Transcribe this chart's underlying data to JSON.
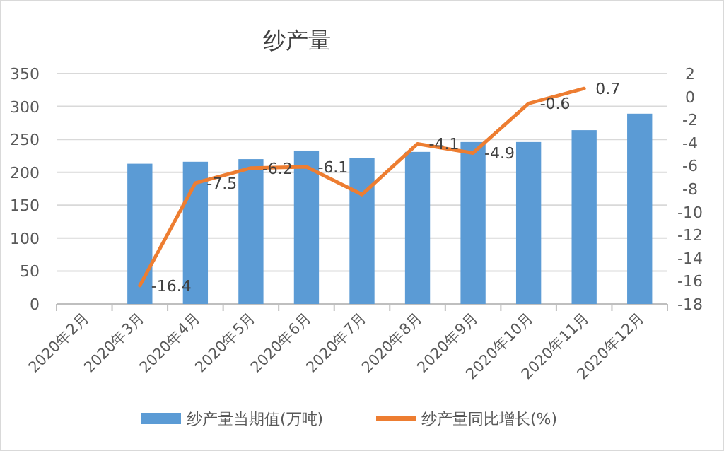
{
  "chart_data": {
    "type": "bar",
    "title": "纱产量",
    "categories": [
      "2020年2月",
      "2020年3月",
      "2020年4月",
      "2020年5月",
      "2020年6月",
      "2020年7月",
      "2020年8月",
      "2020年9月",
      "2020年10月",
      "2020年11月",
      "2020年12月"
    ],
    "series": [
      {
        "name": "纱产量当期值(万吨)",
        "color": "#5b9bd5",
        "values": [
          null,
          213,
          216,
          220,
          233,
          222,
          231,
          246,
          246,
          264,
          289
        ]
      },
      {
        "name": "纱产量同比增长(%)",
        "type": "line",
        "axis": "y2",
        "color": "#ed7d31",
        "values": [
          null,
          -16.4,
          -7.5,
          -6.2,
          -6.1,
          -8.5,
          -4.1,
          -4.9,
          -0.6,
          0.7,
          null
        ],
        "value_labels": [
          null,
          "-16.4",
          "-7.5",
          "-6.2",
          "-6.1",
          null,
          "-4.1",
          "-4.9",
          "-0.6",
          "0.7",
          null
        ]
      }
    ],
    "ylim": [
      0,
      350
    ],
    "yticks": [
      0,
      50,
      100,
      150,
      200,
      250,
      300,
      350
    ],
    "y2lim": [
      -18,
      2
    ],
    "y2ticks": [
      -18,
      -16,
      -14,
      -12,
      -10,
      -8,
      -6,
      -4,
      -2,
      0,
      2
    ],
    "grid": "y",
    "legend": "bottom"
  }
}
